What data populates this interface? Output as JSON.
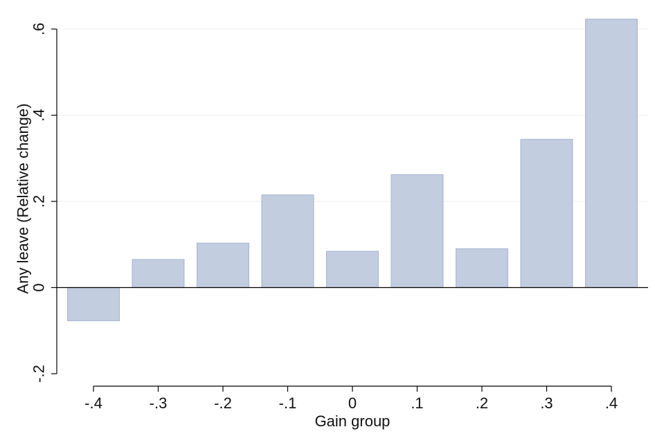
{
  "chart_data": {
    "type": "bar",
    "title": "",
    "xlabel": "Gain group",
    "ylabel": "Any leave (Relative change)",
    "x": [
      -0.4,
      -0.3,
      -0.2,
      -0.1,
      0.0,
      0.1,
      0.2,
      0.3,
      0.4
    ],
    "values": [
      -0.077,
      0.065,
      0.103,
      0.215,
      0.084,
      0.262,
      0.09,
      0.344,
      0.623
    ],
    "xlim": [
      -0.44,
      0.44
    ],
    "ylim": [
      -0.2,
      0.6
    ],
    "xticks": [
      -0.4,
      -0.3,
      -0.2,
      -0.1,
      0.0,
      0.1,
      0.2,
      0.3,
      0.4
    ],
    "xtick_labels": [
      "-.4",
      "-.3",
      "-.2",
      "-.1",
      "0",
      ".1",
      ".2",
      ".3",
      ".4"
    ],
    "yticks": [
      -0.2,
      0,
      0.2,
      0.4,
      0.6
    ],
    "ytick_labels": [
      "-.2",
      "0",
      ".2",
      ".4",
      ".6"
    ],
    "grid": true,
    "legend": "none",
    "colors": {
      "bar_fill": "#c2cddf",
      "bar_edge": "#aab8d3"
    }
  }
}
